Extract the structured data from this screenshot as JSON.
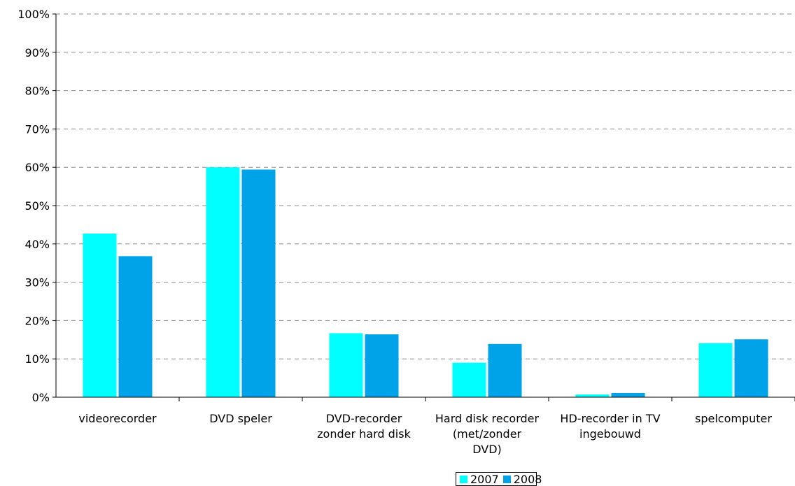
{
  "chart_data": {
    "type": "bar",
    "categories": [
      [
        "videorecorder"
      ],
      [
        "DVD speler"
      ],
      [
        "DVD-recorder",
        "zonder hard disk"
      ],
      [
        "Hard disk recorder",
        "(met/zonder",
        "DVD)"
      ],
      [
        "HD-recorder in TV",
        "ingebouwd"
      ],
      [
        "spelcomputer"
      ]
    ],
    "series": [
      {
        "name": "2007",
        "color": "#00FFFF",
        "values": [
          42.7,
          60.0,
          16.7,
          9.0,
          0.7,
          14.1
        ]
      },
      {
        "name": "2008",
        "color": "#00A2E8",
        "values": [
          36.8,
          59.4,
          16.4,
          13.9,
          1.1,
          15.1
        ]
      }
    ],
    "ylim": [
      0,
      100
    ],
    "ytick_labels": [
      "0%",
      "10%",
      "20%",
      "30%",
      "40%",
      "50%",
      "60%",
      "70%",
      "80%",
      "90%",
      "100%"
    ],
    "grid": true,
    "legend_position": "bottom"
  }
}
